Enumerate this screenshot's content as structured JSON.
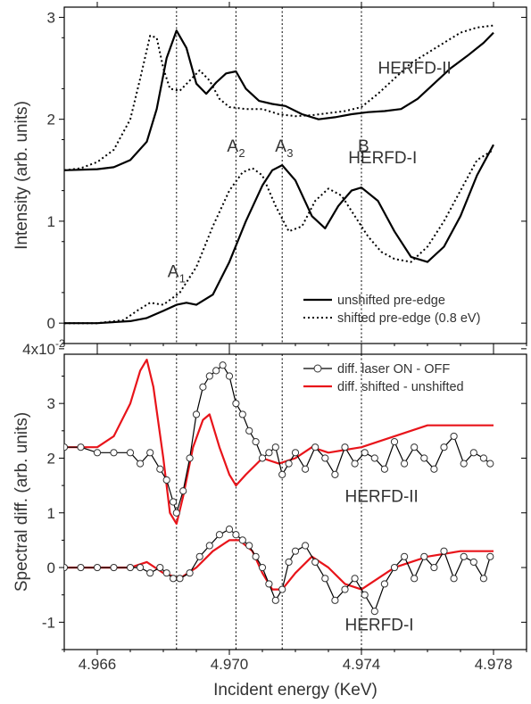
{
  "chart_data": {
    "type": "line",
    "x_axis": {
      "label": "Incident energy (KeV)",
      "range": [
        4.965,
        4.979
      ],
      "ticks": [
        4.966,
        4.97,
        4.974,
        4.978
      ],
      "tick_labels": [
        "4.966",
        "4.970",
        "4.974",
        "4.978"
      ]
    },
    "markers": [
      {
        "x": 4.9684,
        "label": "A",
        "sub": "1"
      },
      {
        "x": 4.9702,
        "label": "A",
        "sub": "2"
      },
      {
        "x": 4.9716,
        "label": "A",
        "sub": "3"
      },
      {
        "x": 4.974,
        "label": "B",
        "sub": ""
      }
    ],
    "panels": [
      {
        "id": "top",
        "ylabel": "Intensity (arb. units)",
        "ylim": [
          -0.2,
          3.1
        ],
        "y_ticks": [
          0,
          1,
          2,
          3
        ],
        "y_tick_labels": [
          "0",
          "1",
          "2",
          "3"
        ],
        "grid": false,
        "annotations": [
          "HERFD-II",
          "HERFD-I"
        ],
        "legend": {
          "position": "bottom-right",
          "items": [
            {
              "label": "unshifted pre-edge",
              "style": "solid",
              "color": "#000000"
            },
            {
              "label": "shifted pre-edge (0.8 eV)",
              "style": "dotted",
              "color": "#000000"
            }
          ]
        },
        "series": [
          {
            "name": "unshifted pre-edge",
            "group": "HERFD-II",
            "style": "solid",
            "color": "#000000",
            "x": [
              4.965,
              4.966,
              4.9665,
              4.967,
              4.9675,
              4.9678,
              4.9681,
              4.9684,
              4.9687,
              4.969,
              4.9693,
              4.9696,
              4.9699,
              4.9702,
              4.9705,
              4.9709,
              4.9713,
              4.9717,
              4.9722,
              4.9727,
              4.9732,
              4.9737,
              4.9742,
              4.9747,
              4.9752,
              4.9757,
              4.9762,
              4.9767,
              4.9772,
              4.9777,
              4.978
            ],
            "y": [
              1.5,
              1.51,
              1.53,
              1.6,
              1.78,
              2.1,
              2.6,
              2.87,
              2.7,
              2.35,
              2.25,
              2.36,
              2.45,
              2.47,
              2.3,
              2.18,
              2.15,
              2.13,
              2.05,
              2.0,
              2.02,
              2.05,
              2.07,
              2.08,
              2.1,
              2.2,
              2.35,
              2.5,
              2.62,
              2.75,
              2.85
            ]
          },
          {
            "name": "shifted pre-edge (0.8 eV)",
            "group": "HERFD-II",
            "style": "dotted",
            "color": "#000000",
            "x": [
              4.965,
              4.9655,
              4.966,
              4.9665,
              4.967,
              4.9673,
              4.9676,
              4.9678,
              4.968,
              4.9682,
              4.9685,
              4.9688,
              4.9691,
              4.9694,
              4.9697,
              4.97,
              4.9705,
              4.971,
              4.9715,
              4.972,
              4.9725,
              4.973,
              4.9735,
              4.974,
              4.9745,
              4.975,
              4.9755,
              4.976,
              4.9765,
              4.977,
              4.9775,
              4.978
            ],
            "y": [
              1.5,
              1.52,
              1.58,
              1.7,
              2.0,
              2.4,
              2.82,
              2.8,
              2.5,
              2.3,
              2.28,
              2.38,
              2.48,
              2.38,
              2.2,
              2.12,
              2.1,
              2.1,
              2.05,
              2.03,
              2.04,
              2.06,
              2.08,
              2.12,
              2.25,
              2.4,
              2.55,
              2.65,
              2.75,
              2.85,
              2.9,
              2.92
            ]
          },
          {
            "name": "unshifted pre-edge",
            "group": "HERFD-I",
            "style": "solid",
            "color": "#000000",
            "x": [
              4.965,
              4.966,
              4.967,
              4.9675,
              4.968,
              4.9684,
              4.9687,
              4.969,
              4.9695,
              4.97,
              4.9705,
              4.971,
              4.9713,
              4.9716,
              4.972,
              4.9725,
              4.9729,
              4.9733,
              4.9737,
              4.974,
              4.9745,
              4.975,
              4.9755,
              4.976,
              4.9765,
              4.977,
              4.9775,
              4.978
            ],
            "y": [
              0.0,
              0.0,
              0.02,
              0.05,
              0.12,
              0.18,
              0.2,
              0.18,
              0.28,
              0.6,
              1.0,
              1.35,
              1.5,
              1.55,
              1.4,
              1.05,
              0.93,
              1.15,
              1.3,
              1.33,
              1.2,
              0.9,
              0.65,
              0.6,
              0.75,
              1.05,
              1.45,
              1.75
            ]
          },
          {
            "name": "shifted pre-edge (0.8 eV)",
            "group": "HERFD-I",
            "style": "dotted",
            "color": "#000000",
            "x": [
              4.965,
              4.966,
              4.9668,
              4.9672,
              4.9676,
              4.968,
              4.9685,
              4.969,
              4.9695,
              4.97,
              4.9704,
              4.9707,
              4.971,
              4.9714,
              4.9718,
              4.9722,
              4.9726,
              4.973,
              4.9734,
              4.9738,
              4.9742,
              4.9746,
              4.975,
              4.9755,
              4.976,
              4.9765,
              4.977,
              4.9775,
              4.978
            ],
            "y": [
              0.0,
              0.0,
              0.03,
              0.12,
              0.2,
              0.18,
              0.3,
              0.55,
              0.95,
              1.3,
              1.48,
              1.52,
              1.45,
              1.15,
              0.9,
              0.95,
              1.2,
              1.32,
              1.25,
              1.05,
              0.85,
              0.7,
              0.63,
              0.6,
              0.75,
              1.0,
              1.3,
              1.6,
              1.7
            ]
          }
        ]
      },
      {
        "id": "bottom",
        "ylabel": "Spectral diff. (arb. units)",
        "ylim": [
          -0.015,
          0.039
        ],
        "y_ticks": [
          -0.01,
          0,
          0.01,
          0.02,
          0.03,
          0.04
        ],
        "y_tick_labels": [
          "-1",
          "0",
          "1",
          "2",
          "3",
          "4x10"
        ],
        "y_tick_exponent": "-2",
        "grid": false,
        "annotations": [
          "HERFD-II",
          "HERFD-I"
        ],
        "legend": {
          "position": "top-right",
          "items": [
            {
              "label": "diff. laser ON - OFF",
              "style": "line-marker",
              "color": "#000000"
            },
            {
              "label": "diff. shifted - unshifted",
              "style": "solid",
              "color": "#e8141a"
            }
          ]
        },
        "series": [
          {
            "name": "diff. shifted - unshifted",
            "group": "HERFD-II",
            "style": "solid",
            "color": "#e8141a",
            "x": [
              4.965,
              4.966,
              4.9665,
              4.967,
              4.9673,
              4.9675,
              4.9677,
              4.968,
              4.9682,
              4.9684,
              4.9686,
              4.9689,
              4.9692,
              4.9694,
              4.9697,
              4.97,
              4.9702,
              4.9705,
              4.971,
              4.9715,
              4.972,
              4.9725,
              4.973,
              4.974,
              4.975,
              4.976,
              4.977,
              4.978
            ],
            "y": [
              0.022,
              0.022,
              0.024,
              0.03,
              0.036,
              0.038,
              0.033,
              0.02,
              0.01,
              0.008,
              0.013,
              0.022,
              0.027,
              0.028,
              0.022,
              0.017,
              0.015,
              0.017,
              0.02,
              0.019,
              0.02,
              0.022,
              0.021,
              0.022,
              0.024,
              0.026,
              0.026,
              0.026
            ]
          },
          {
            "name": "diff. shifted - unshifted",
            "group": "HERFD-I",
            "style": "solid",
            "color": "#e8141a",
            "x": [
              4.965,
              4.966,
              4.967,
              4.9675,
              4.968,
              4.9685,
              4.969,
              4.9695,
              4.97,
              4.9703,
              4.9707,
              4.971,
              4.9713,
              4.9716,
              4.972,
              4.9725,
              4.973,
              4.9735,
              4.974,
              4.9745,
              4.975,
              4.9755,
              4.976,
              4.977,
              4.978
            ],
            "y": [
              0.0,
              0.0,
              0.0,
              0.001,
              -0.001,
              -0.002,
              0.0,
              0.003,
              0.005,
              0.005,
              0.003,
              -0.001,
              -0.004,
              -0.004,
              -0.001,
              0.002,
              0.0,
              -0.003,
              -0.004,
              -0.002,
              0.0,
              0.001,
              0.002,
              0.003,
              0.003
            ]
          },
          {
            "name": "diff. laser ON - OFF",
            "group": "HERFD-II",
            "style": "line-marker",
            "color": "#000000",
            "x": [
              4.965,
              4.9655,
              4.966,
              4.9665,
              4.967,
              4.9673,
              4.9676,
              4.9679,
              4.9681,
              4.9683,
              4.9684,
              4.9686,
              4.9688,
              4.969,
              4.9692,
              4.9694,
              4.9696,
              4.9698,
              4.97,
              4.9702,
              4.9704,
              4.9706,
              4.9708,
              4.971,
              4.9712,
              4.9714,
              4.9716,
              4.9718,
              4.972,
              4.9723,
              4.9726,
              4.9729,
              4.9732,
              4.9735,
              4.9738,
              4.9741,
              4.9744,
              4.9747,
              4.975,
              4.9753,
              4.9756,
              4.9759,
              4.9762,
              4.9765,
              4.9768,
              4.9771,
              4.9774,
              4.9777,
              4.9779
            ],
            "y": [
              0.022,
              0.022,
              0.021,
              0.021,
              0.021,
              0.019,
              0.021,
              0.018,
              0.016,
              0.012,
              0.01,
              0.014,
              0.02,
              0.028,
              0.033,
              0.035,
              0.036,
              0.037,
              0.035,
              0.03,
              0.028,
              0.025,
              0.023,
              0.02,
              0.021,
              0.022,
              0.017,
              0.019,
              0.021,
              0.018,
              0.022,
              0.02,
              0.017,
              0.022,
              0.019,
              0.021,
              0.02,
              0.018,
              0.023,
              0.019,
              0.022,
              0.02,
              0.018,
              0.022,
              0.024,
              0.019,
              0.021,
              0.02,
              0.019
            ]
          },
          {
            "name": "diff. laser ON - OFF",
            "group": "HERFD-I",
            "style": "line-marker",
            "color": "#000000",
            "x": [
              4.965,
              4.9655,
              4.966,
              4.9665,
              4.967,
              4.9673,
              4.9676,
              4.9679,
              4.9681,
              4.9683,
              4.9685,
              4.9688,
              4.9691,
              4.9694,
              4.9697,
              4.97,
              4.9702,
              4.9704,
              4.9706,
              4.9708,
              4.971,
              4.9712,
              4.9714,
              4.9716,
              4.9718,
              4.972,
              4.9723,
              4.9726,
              4.9729,
              4.9732,
              4.9735,
              4.9738,
              4.9741,
              4.9744,
              4.9747,
              4.975,
              4.9753,
              4.9756,
              4.9759,
              4.9762,
              4.9765,
              4.9768,
              4.9771,
              4.9774,
              4.9777,
              4.9779
            ],
            "y": [
              0.0,
              0.0,
              0.0,
              0.0,
              0.0,
              0.0,
              -0.001,
              0.0,
              -0.001,
              -0.002,
              -0.002,
              -0.001,
              0.002,
              0.004,
              0.006,
              0.007,
              0.006,
              0.005,
              0.004,
              0.002,
              0.0,
              -0.003,
              -0.006,
              -0.004,
              0.001,
              0.003,
              0.004,
              0.001,
              -0.002,
              -0.006,
              -0.004,
              -0.002,
              -0.005,
              -0.008,
              -0.003,
              0.0,
              0.002,
              -0.002,
              0.002,
              0.0,
              0.003,
              -0.002,
              0.002,
              0.001,
              -0.002,
              0.002
            ]
          }
        ]
      }
    ]
  }
}
